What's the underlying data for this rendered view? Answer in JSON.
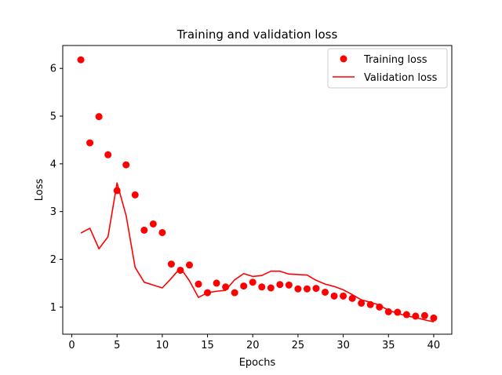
{
  "chart_data": {
    "type": "scatter",
    "title": "Training and validation loss",
    "xlabel": "Epochs",
    "ylabel": "Loss",
    "xlim": [
      -1,
      42
    ],
    "ylim": [
      0.43,
      6.48
    ],
    "xticks": [
      0,
      5,
      10,
      15,
      20,
      25,
      30,
      35,
      40
    ],
    "yticks": [
      1,
      2,
      3,
      4,
      5,
      6
    ],
    "grid": false,
    "legend_position": "top-right",
    "series": [
      {
        "name": "Training loss",
        "style": "markers",
        "color": "#ff0000",
        "x": [
          1,
          2,
          3,
          4,
          5,
          6,
          7,
          8,
          9,
          10,
          11,
          12,
          13,
          14,
          15,
          16,
          17,
          18,
          19,
          20,
          21,
          22,
          23,
          24,
          25,
          26,
          27,
          28,
          29,
          30,
          31,
          32,
          33,
          34,
          35,
          36,
          37,
          38,
          39,
          40
        ],
        "values": [
          6.18,
          4.44,
          4.99,
          4.19,
          3.44,
          3.98,
          3.35,
          2.61,
          2.74,
          2.56,
          1.9,
          1.77,
          1.88,
          1.48,
          1.3,
          1.5,
          1.42,
          1.3,
          1.44,
          1.52,
          1.42,
          1.4,
          1.47,
          1.46,
          1.38,
          1.38,
          1.39,
          1.31,
          1.23,
          1.23,
          1.18,
          1.08,
          1.05,
          1.0,
          0.9,
          0.89,
          0.84,
          0.81,
          0.82,
          0.77
        ]
      },
      {
        "name": "Validation loss",
        "style": "line",
        "color": "#ff0000",
        "x": [
          1,
          2,
          3,
          4,
          5,
          6,
          7,
          8,
          9,
          10,
          11,
          12,
          13,
          14,
          15,
          16,
          17,
          18,
          19,
          20,
          21,
          22,
          23,
          24,
          25,
          26,
          27,
          28,
          29,
          30,
          31,
          32,
          33,
          34,
          35,
          36,
          37,
          38,
          39,
          40
        ],
        "values": [
          2.55,
          2.65,
          2.22,
          2.47,
          3.6,
          2.92,
          1.83,
          1.52,
          1.46,
          1.4,
          1.6,
          1.82,
          1.55,
          1.2,
          1.3,
          1.33,
          1.35,
          1.57,
          1.7,
          1.64,
          1.66,
          1.75,
          1.75,
          1.69,
          1.68,
          1.67,
          1.56,
          1.48,
          1.43,
          1.36,
          1.26,
          1.15,
          1.1,
          1.04,
          0.93,
          0.87,
          0.81,
          0.78,
          0.73,
          0.69
        ]
      }
    ]
  }
}
